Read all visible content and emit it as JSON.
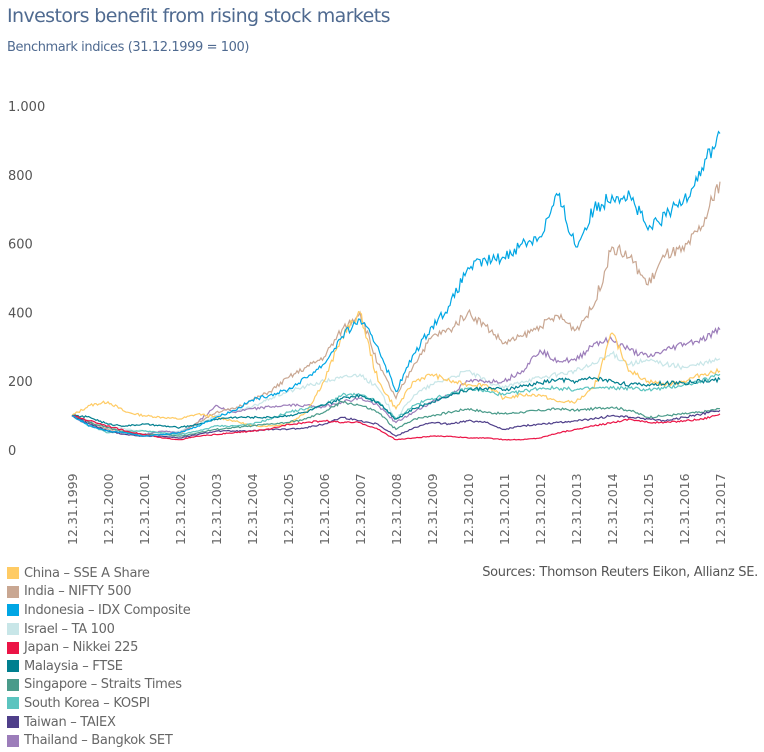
{
  "title": "Investors benefit from rising stock markets",
  "subtitle": "Benchmark indices (31.12.1999 = 100)",
  "source": "Sources: Thomson Reuters Eikon, Allianz SE.",
  "chart_data": {
    "type": "line",
    "title": "Investors benefit from rising stock markets",
    "subtitle": "Benchmark indices (31.12.1999 = 100)",
    "ylim": [
      0,
      1000
    ],
    "y_ticks": [
      1000,
      800,
      600,
      400,
      200,
      0
    ],
    "y_tick_labels": [
      "1.000",
      "800",
      "600",
      "400",
      "200",
      "0"
    ],
    "x_tick_labels": [
      "12.31.1999",
      "12.31.2000",
      "12.31.2001",
      "12.31.2002",
      "12.31.2003",
      "12.31.2004",
      "12.31.2005",
      "12.31.2006",
      "12.31.2007",
      "12.31.2008",
      "12.31.2009",
      "12.31.2010",
      "12.31.2011",
      "12.31.2012",
      "12.31.2013",
      "12.31.2014",
      "12.31.2015",
      "12.31.2016",
      "12.31.2017"
    ],
    "grid": false,
    "legend": "bottom-left",
    "x": [
      "1999-12",
      "2000-06",
      "2000-12",
      "2001-06",
      "2001-12",
      "2002-06",
      "2002-12",
      "2003-06",
      "2003-12",
      "2004-06",
      "2004-12",
      "2005-06",
      "2005-12",
      "2006-06",
      "2006-12",
      "2007-06",
      "2007-12",
      "2008-06",
      "2008-12",
      "2009-06",
      "2009-12",
      "2010-06",
      "2010-12",
      "2011-06",
      "2011-12",
      "2012-06",
      "2012-12",
      "2013-06",
      "2013-12",
      "2014-06",
      "2014-12",
      "2015-06",
      "2015-12",
      "2016-06",
      "2016-12",
      "2017-06",
      "2017-12"
    ],
    "series": [
      {
        "name": "China – SSE A Share",
        "color": "#FFCB64",
        "values": [
          100,
          130,
          140,
          110,
          100,
          95,
          90,
          105,
          95,
          85,
          70,
          70,
          75,
          110,
          200,
          330,
          400,
          200,
          120,
          200,
          220,
          200,
          190,
          190,
          150,
          160,
          160,
          140,
          140,
          180,
          340,
          230,
          200,
          190,
          200,
          220,
          230
        ]
      },
      {
        "name": "India – NIFTY 500",
        "color": "#C9A792",
        "values": [
          100,
          80,
          60,
          55,
          45,
          45,
          48,
          80,
          110,
          120,
          145,
          170,
          210,
          240,
          270,
          350,
          400,
          250,
          150,
          250,
          330,
          350,
          400,
          360,
          310,
          330,
          360,
          390,
          350,
          420,
          590,
          560,
          480,
          570,
          580,
          650,
          780
        ]
      },
      {
        "name": "Indonesia – IDX Composite",
        "color": "#00A6E4",
        "values": [
          100,
          70,
          55,
          50,
          40,
          45,
          50,
          70,
          95,
          115,
          145,
          160,
          175,
          210,
          250,
          330,
          380,
          300,
          170,
          280,
          360,
          420,
          530,
          550,
          560,
          600,
          620,
          740,
          590,
          700,
          740,
          740,
          640,
          680,
          730,
          820,
          920
        ]
      },
      {
        "name": "Israel – TA 100",
        "color": "#C8E6E8",
        "values": [
          100,
          85,
          70,
          60,
          55,
          50,
          55,
          75,
          100,
          110,
          125,
          150,
          170,
          185,
          200,
          210,
          220,
          180,
          90,
          160,
          190,
          210,
          230,
          200,
          180,
          200,
          210,
          220,
          230,
          250,
          280,
          250,
          260,
          250,
          240,
          250,
          265
        ]
      },
      {
        "name": "Japan – Nikkei 225",
        "color": "#EB1446",
        "values": [
          100,
          85,
          70,
          55,
          45,
          35,
          30,
          40,
          45,
          50,
          55,
          60,
          75,
          80,
          85,
          80,
          80,
          60,
          30,
          35,
          40,
          40,
          35,
          35,
          30,
          30,
          35,
          50,
          60,
          70,
          80,
          90,
          80,
          80,
          85,
          90,
          105
        ]
      },
      {
        "name": "Malaysia – FTSE",
        "color": "#007F8F",
        "values": [
          100,
          95,
          75,
          70,
          75,
          70,
          65,
          75,
          90,
          95,
          95,
          95,
          100,
          110,
          130,
          150,
          160,
          140,
          90,
          120,
          140,
          160,
          175,
          180,
          175,
          185,
          195,
          205,
          200,
          210,
          200,
          190,
          190,
          195,
          195,
          200,
          205
        ]
      },
      {
        "name": "Singapore – Straits Times",
        "color": "#4A9B8A",
        "values": [
          100,
          80,
          65,
          50,
          45,
          45,
          40,
          50,
          60,
          65,
          70,
          75,
          80,
          90,
          110,
          140,
          130,
          110,
          60,
          90,
          100,
          110,
          120,
          110,
          105,
          110,
          115,
          120,
          115,
          120,
          125,
          115,
          95,
          100,
          105,
          110,
          120
        ]
      },
      {
        "name": "South Korea –  KOSPI",
        "color": "#5BC4BF",
        "values": [
          100,
          70,
          50,
          55,
          55,
          50,
          45,
          55,
          70,
          70,
          75,
          90,
          110,
          120,
          130,
          160,
          160,
          140,
          90,
          130,
          150,
          160,
          180,
          170,
          160,
          170,
          180,
          180,
          175,
          180,
          180,
          180,
          175,
          180,
          190,
          200,
          220
        ]
      },
      {
        "name": "Taiwan – TAIEX",
        "color": "#4F3F8A",
        "values": [
          100,
          75,
          55,
          45,
          40,
          40,
          35,
          45,
          55,
          55,
          55,
          60,
          60,
          65,
          75,
          95,
          85,
          75,
          40,
          65,
          80,
          75,
          85,
          80,
          60,
          70,
          75,
          80,
          85,
          90,
          100,
          95,
          90,
          85,
          95,
          105,
          115
        ]
      },
      {
        "name": "Thailand – Bangkok SET",
        "color": "#9C7DBA",
        "values": [
          100,
          70,
          55,
          50,
          45,
          55,
          50,
          80,
          130,
          110,
          120,
          125,
          130,
          130,
          125,
          140,
          150,
          130,
          80,
          110,
          140,
          160,
          200,
          200,
          200,
          230,
          290,
          260,
          260,
          310,
          320,
          290,
          270,
          290,
          310,
          320,
          350
        ]
      }
    ]
  }
}
